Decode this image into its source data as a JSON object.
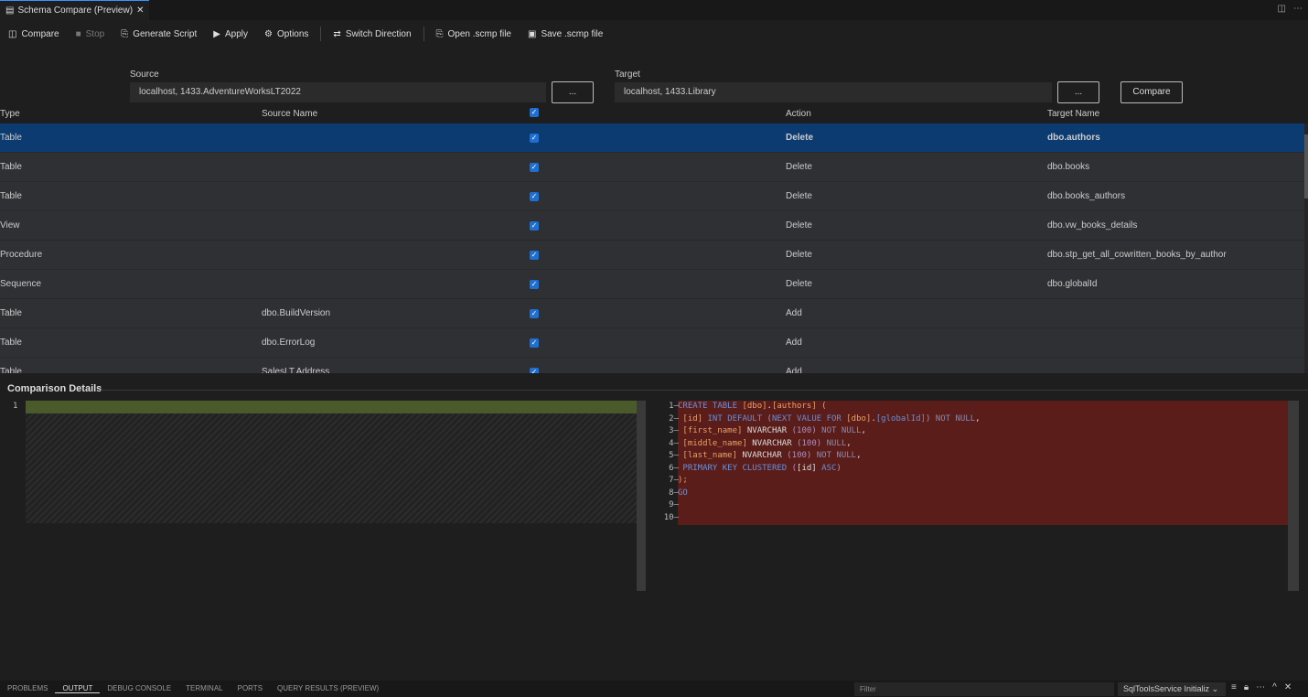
{
  "tab": {
    "title": "Schema Compare (Preview)",
    "close": "✕"
  },
  "toolbar": [
    {
      "label": "Compare",
      "icon": "compare-icon",
      "glyph": "◫"
    },
    {
      "label": "Stop",
      "icon": "stop-icon",
      "glyph": "■",
      "disabled": true
    },
    {
      "label": "Generate Script",
      "icon": "generate-script-icon",
      "glyph": "⎘"
    },
    {
      "label": "Apply",
      "icon": "play-icon",
      "glyph": "▶"
    },
    {
      "label": "Options",
      "icon": "gear-icon",
      "glyph": "⚙"
    },
    {
      "label": "Switch Direction",
      "icon": "switch-direction-icon",
      "glyph": "⇄"
    },
    {
      "label": "Open .scmp file",
      "icon": "open-file-icon",
      "glyph": "⎘"
    },
    {
      "label": "Save .scmp file",
      "icon": "save-icon",
      "glyph": "▣"
    }
  ],
  "source": {
    "label": "Source",
    "value": "localhost, 1433.AdventureWorksLT2022",
    "browse": "..."
  },
  "target": {
    "label": "Target",
    "value": "localhost, 1433.Library",
    "browse": "...",
    "compare": "Compare"
  },
  "columns": {
    "type": "Type",
    "source": "Source Name",
    "action": "Action",
    "target": "Target Name"
  },
  "rows": [
    {
      "type": "Table",
      "source": "",
      "action": "Delete",
      "target": "dbo.authors",
      "selected": true
    },
    {
      "type": "Table",
      "source": "",
      "action": "Delete",
      "target": "dbo.books"
    },
    {
      "type": "Table",
      "source": "",
      "action": "Delete",
      "target": "dbo.books_authors"
    },
    {
      "type": "View",
      "source": "",
      "action": "Delete",
      "target": "dbo.vw_books_details"
    },
    {
      "type": "Procedure",
      "source": "",
      "action": "Delete",
      "target": "dbo.stp_get_all_cowritten_books_by_author"
    },
    {
      "type": "Sequence",
      "source": "",
      "action": "Delete",
      "target": "dbo.globalId"
    },
    {
      "type": "Table",
      "source": "dbo.BuildVersion",
      "action": "Add",
      "target": ""
    },
    {
      "type": "Table",
      "source": "dbo.ErrorLog",
      "action": "Add",
      "target": ""
    },
    {
      "type": "Table",
      "source": "SalesLT.Address",
      "action": "Add",
      "target": ""
    }
  ],
  "details": {
    "title": "Comparison Details",
    "left_line": "1"
  },
  "code": [
    [
      [
        "CREATE TABLE ",
        "k"
      ],
      [
        "[dbo]",
        "b"
      ],
      [
        ".",
        "t"
      ],
      [
        "[authors]",
        "b"
      ],
      [
        " (",
        "b"
      ]
    ],
    [
      [
        " [id] ",
        "b"
      ],
      [
        "INT DEFAULT ",
        "k"
      ],
      [
        "(",
        "n"
      ],
      [
        "NEXT VALUE FOR ",
        "k"
      ],
      [
        "[dbo]",
        "b"
      ],
      [
        ".",
        "t"
      ],
      [
        "[globalId]",
        "k"
      ],
      [
        ")",
        "n"
      ],
      [
        " NOT NULL",
        "g"
      ],
      [
        ",",
        "t"
      ]
    ],
    [
      [
        " [first_name] ",
        "b"
      ],
      [
        "NVARCHAR ",
        "t"
      ],
      [
        "(100)",
        "n"
      ],
      [
        " NOT NULL",
        "g"
      ],
      [
        ",",
        "t"
      ]
    ],
    [
      [
        " [middle_name] ",
        "b"
      ],
      [
        "NVARCHAR ",
        "t"
      ],
      [
        "(100)",
        "n"
      ],
      [
        " NULL",
        "g"
      ],
      [
        ",",
        "t"
      ]
    ],
    [
      [
        " [last_name] ",
        "b"
      ],
      [
        "NVARCHAR ",
        "t"
      ],
      [
        "(100)",
        "n"
      ],
      [
        " NOT NULL",
        "g"
      ],
      [
        ",",
        "t"
      ]
    ],
    [
      [
        " PRIMARY KEY CLUSTERED ",
        "k"
      ],
      [
        "(",
        "n"
      ],
      [
        "[id]",
        "t"
      ],
      [
        " ASC",
        "k"
      ],
      [
        ")",
        "n"
      ]
    ],
    [
      [
        ");",
        "b"
      ]
    ],
    [
      [
        "GO",
        "k"
      ]
    ],
    [],
    []
  ],
  "panel": {
    "tabs": [
      "PROBLEMS",
      "OUTPUT",
      "DEBUG CONSOLE",
      "TERMINAL",
      "PORTS",
      "QUERY RESULTS (PREVIEW)"
    ],
    "active": "OUTPUT",
    "filter_placeholder": "Filter",
    "channel": "SqlToolsService Initializ"
  },
  "colors": {
    "accent": "#1f6fd1",
    "selected_row": "#0b3b70",
    "deleted": "#5a1d19",
    "added": "#4b5a2a"
  }
}
